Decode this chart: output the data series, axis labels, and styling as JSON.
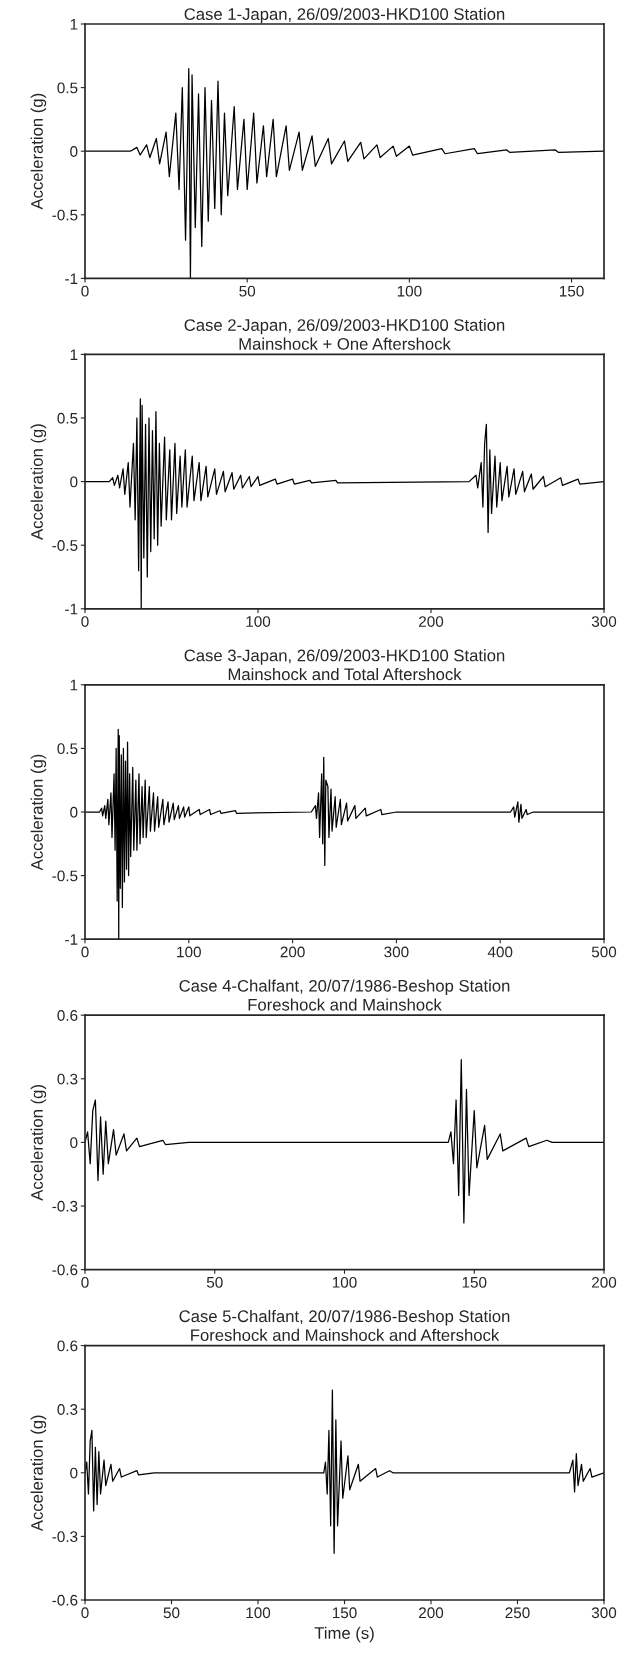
{
  "chart_data": [
    {
      "type": "line",
      "title": "Case 1-Japan, 26/09/2003-HKD100 Station",
      "ylabel": "Acceleration (g)",
      "xlim": [
        0,
        160
      ],
      "xticks": [
        0,
        50,
        100,
        150
      ],
      "ylim": [
        -1,
        1
      ],
      "yticks": [
        -1,
        -0.5,
        0,
        0.5,
        1
      ],
      "series": [
        {
          "color": "#000000",
          "x": [
            0,
            14,
            16,
            17,
            19,
            20,
            22,
            23,
            25,
            26,
            28,
            29,
            30,
            31,
            32,
            32.5,
            33,
            34,
            35,
            36,
            37,
            38,
            39,
            40,
            41,
            42,
            43,
            44,
            46,
            47,
            49,
            50,
            52,
            53,
            55,
            56,
            58,
            59,
            62,
            63,
            66,
            67,
            70,
            71,
            75,
            76,
            80,
            81,
            85,
            86,
            90,
            91,
            95,
            96,
            100,
            101,
            110,
            111,
            120,
            121,
            130,
            131,
            145,
            146,
            160
          ],
          "values": [
            0,
            0,
            0.03,
            -0.03,
            0.05,
            -0.05,
            0.1,
            -0.1,
            0.15,
            -0.2,
            0.3,
            -0.3,
            0.5,
            -0.7,
            0.65,
            -1,
            0.6,
            -0.6,
            0.45,
            -0.75,
            0.5,
            -0.55,
            0.4,
            -0.45,
            0.55,
            -0.5,
            0.3,
            -0.35,
            0.35,
            -0.3,
            0.25,
            -0.3,
            0.3,
            -0.25,
            0.2,
            -0.2,
            0.25,
            -0.2,
            0.2,
            -0.15,
            0.15,
            -0.15,
            0.12,
            -0.12,
            0.1,
            -0.1,
            0.08,
            -0.08,
            0.07,
            -0.06,
            0.05,
            -0.05,
            0.04,
            -0.04,
            0.04,
            -0.03,
            0.02,
            -0.02,
            0.02,
            -0.02,
            0.01,
            -0.01,
            0.01,
            -0.01,
            0
          ]
        }
      ]
    },
    {
      "type": "line",
      "title": "Case 2-Japan, 26/09/2003-HKD100 Station",
      "subtitle": "Mainshock + One Aftershock",
      "ylabel": "Acceleration (g)",
      "xlim": [
        0,
        300
      ],
      "xticks": [
        0,
        100,
        200,
        300
      ],
      "ylim": [
        -1,
        1
      ],
      "yticks": [
        -1,
        -0.5,
        0,
        0.5,
        1
      ],
      "series": [
        {
          "color": "#000000",
          "x": [
            0,
            14,
            16,
            17,
            19,
            20,
            22,
            23,
            25,
            26,
            28,
            29,
            30,
            31,
            32,
            32.5,
            33,
            34,
            35,
            36,
            37,
            38,
            39,
            40,
            41,
            42,
            43,
            44,
            46,
            47,
            49,
            50,
            52,
            53,
            55,
            56,
            58,
            59,
            62,
            63,
            66,
            67,
            70,
            71,
            75,
            76,
            80,
            81,
            85,
            86,
            90,
            91,
            95,
            96,
            100,
            101,
            110,
            111,
            120,
            121,
            130,
            131,
            145,
            146,
            222,
            226,
            227,
            229,
            230,
            231,
            232,
            233,
            234,
            235,
            237,
            238,
            240,
            241,
            244,
            245,
            248,
            249,
            253,
            254,
            258,
            259,
            265,
            266,
            275,
            276,
            285,
            286,
            300
          ],
          "values": [
            0,
            0,
            0.03,
            -0.03,
            0.05,
            -0.05,
            0.1,
            -0.1,
            0.15,
            -0.2,
            0.3,
            -0.3,
            0.5,
            -0.7,
            0.65,
            -1,
            0.6,
            -0.6,
            0.45,
            -0.75,
            0.5,
            -0.55,
            0.4,
            -0.45,
            0.55,
            -0.5,
            0.3,
            -0.35,
            0.35,
            -0.3,
            0.25,
            -0.3,
            0.3,
            -0.25,
            0.2,
            -0.2,
            0.25,
            -0.2,
            0.2,
            -0.15,
            0.15,
            -0.15,
            0.12,
            -0.12,
            0.1,
            -0.1,
            0.08,
            -0.08,
            0.07,
            -0.06,
            0.05,
            -0.05,
            0.04,
            -0.04,
            0.04,
            -0.03,
            0.02,
            -0.02,
            0.02,
            -0.02,
            0.01,
            -0.01,
            0.01,
            -0.01,
            0,
            0.05,
            -0.05,
            0.15,
            -0.2,
            0.3,
            0.45,
            -0.4,
            0.25,
            -0.25,
            0.2,
            -0.2,
            0.15,
            -0.15,
            0.12,
            -0.12,
            0.1,
            -0.1,
            0.08,
            -0.08,
            0.06,
            -0.06,
            0.04,
            -0.04,
            0.03,
            -0.03,
            0.02,
            -0.02,
            0
          ]
        }
      ]
    },
    {
      "type": "line",
      "title": "Case 3-Japan, 26/09/2003-HKD100 Station",
      "subtitle": "Mainshock and Total Aftershock",
      "ylabel": "Acceleration (g)",
      "xlim": [
        0,
        500
      ],
      "xticks": [
        0,
        100,
        200,
        300,
        400,
        500
      ],
      "ylim": [
        -1,
        1
      ],
      "yticks": [
        -1,
        -0.5,
        0,
        0.5,
        1
      ],
      "series": [
        {
          "color": "#000000",
          "x": [
            0,
            14,
            16,
            17,
            19,
            20,
            22,
            23,
            25,
            26,
            28,
            29,
            30,
            31,
            32,
            32.5,
            33,
            34,
            35,
            36,
            37,
            38,
            39,
            40,
            41,
            42,
            43,
            44,
            46,
            47,
            49,
            50,
            52,
            53,
            55,
            56,
            58,
            59,
            62,
            63,
            66,
            67,
            70,
            71,
            75,
            76,
            80,
            81,
            85,
            86,
            90,
            91,
            95,
            96,
            100,
            101,
            110,
            111,
            120,
            121,
            130,
            131,
            145,
            146,
            218,
            222,
            223,
            225,
            226,
            228,
            229,
            230,
            231,
            232,
            234,
            235,
            237,
            238,
            241,
            242,
            246,
            247,
            252,
            253,
            260,
            261,
            270,
            271,
            285,
            286,
            300,
            410,
            413,
            414,
            417,
            418,
            420,
            421,
            425,
            426,
            432,
            500
          ],
          "values": [
            0,
            0,
            0.03,
            -0.03,
            0.05,
            -0.05,
            0.1,
            -0.1,
            0.15,
            -0.2,
            0.3,
            -0.3,
            0.5,
            -0.7,
            0.65,
            -1,
            0.6,
            -0.6,
            0.45,
            -0.75,
            0.5,
            -0.55,
            0.4,
            -0.45,
            0.55,
            -0.5,
            0.3,
            -0.35,
            0.35,
            -0.3,
            0.25,
            -0.3,
            0.3,
            -0.25,
            0.2,
            -0.2,
            0.25,
            -0.2,
            0.2,
            -0.15,
            0.15,
            -0.15,
            0.12,
            -0.12,
            0.1,
            -0.1,
            0.08,
            -0.08,
            0.07,
            -0.06,
            0.05,
            -0.05,
            0.04,
            -0.04,
            0.04,
            -0.03,
            0.02,
            -0.02,
            0.02,
            -0.02,
            0.01,
            -0.01,
            0.01,
            -0.01,
            0,
            0.05,
            -0.05,
            0.15,
            -0.2,
            0.3,
            -0.25,
            0.43,
            -0.42,
            0.25,
            0.2,
            -0.2,
            0.18,
            -0.15,
            0.12,
            -0.12,
            0.1,
            -0.1,
            0.07,
            -0.07,
            0.05,
            -0.05,
            0.03,
            -0.03,
            0.02,
            -0.02,
            0,
            0,
            0.04,
            -0.04,
            0.08,
            -0.08,
            0.06,
            -0.05,
            0.02,
            -0.02,
            0,
            0
          ]
        }
      ]
    },
    {
      "type": "line",
      "title": "Case 4-Chalfant, 20/07/1986-Beshop Station",
      "subtitle": "Foreshock and Mainshock",
      "ylabel": "Acceleration (g)",
      "xlim": [
        0,
        200
      ],
      "xticks": [
        0,
        50,
        100,
        150,
        200
      ],
      "ylim": [
        -0.6,
        0.6
      ],
      "yticks": [
        -0.6,
        -0.3,
        0,
        0.3,
        0.6
      ],
      "series": [
        {
          "color": "#000000",
          "x": [
            0,
            1,
            2,
            3,
            4,
            5,
            6,
            7,
            8,
            9,
            11,
            12,
            15,
            16,
            20,
            21,
            30,
            31,
            40,
            140,
            141,
            142,
            143,
            144,
            145,
            146,
            147,
            148,
            150,
            151,
            154,
            155,
            160,
            161,
            170,
            171,
            178,
            180,
            200
          ],
          "values": [
            0,
            0.05,
            -0.1,
            0.15,
            0.2,
            -0.18,
            0.12,
            -0.15,
            0.1,
            -0.1,
            0.06,
            -0.06,
            0.04,
            -0.04,
            0.02,
            -0.02,
            0.01,
            -0.01,
            0,
            0,
            0.05,
            -0.1,
            0.2,
            -0.25,
            0.39,
            -0.38,
            0.25,
            -0.25,
            0.15,
            -0.12,
            0.08,
            -0.08,
            0.04,
            -0.04,
            0.02,
            -0.02,
            0.01,
            0,
            0
          ]
        }
      ]
    },
    {
      "type": "line",
      "title": "Case 5-Chalfant, 20/07/1986-Beshop Station",
      "subtitle": "Foreshock and Mainshock and Aftershock",
      "xlabel": "Time (s)",
      "ylabel": "Acceleration (g)",
      "xlim": [
        0,
        300
      ],
      "xticks": [
        0,
        50,
        100,
        150,
        200,
        250,
        300
      ],
      "ylim": [
        -0.6,
        0.6
      ],
      "yticks": [
        -0.6,
        -0.3,
        0,
        0.3,
        0.6
      ],
      "series": [
        {
          "color": "#000000",
          "x": [
            0,
            1,
            2,
            3,
            4,
            5,
            6,
            7,
            8,
            9,
            11,
            12,
            15,
            16,
            20,
            21,
            30,
            31,
            40,
            138,
            139,
            140,
            141,
            142,
            143,
            144,
            145,
            146,
            148,
            149,
            152,
            153,
            158,
            159,
            168,
            169,
            176,
            178,
            280,
            282,
            283,
            284,
            285,
            287,
            288,
            292,
            293,
            300
          ],
          "values": [
            0,
            0.05,
            -0.1,
            0.15,
            0.2,
            -0.18,
            0.12,
            -0.15,
            0.1,
            -0.1,
            0.06,
            -0.06,
            0.04,
            -0.04,
            0.02,
            -0.02,
            0.01,
            -0.01,
            0,
            0,
            0.05,
            -0.1,
            0.2,
            -0.25,
            0.39,
            -0.38,
            0.25,
            -0.25,
            0.15,
            -0.12,
            0.08,
            -0.08,
            0.04,
            -0.04,
            0.02,
            -0.02,
            0.01,
            0,
            0,
            0.06,
            -0.09,
            0.09,
            -0.06,
            0.04,
            -0.04,
            0.02,
            -0.02,
            0
          ]
        }
      ]
    }
  ]
}
